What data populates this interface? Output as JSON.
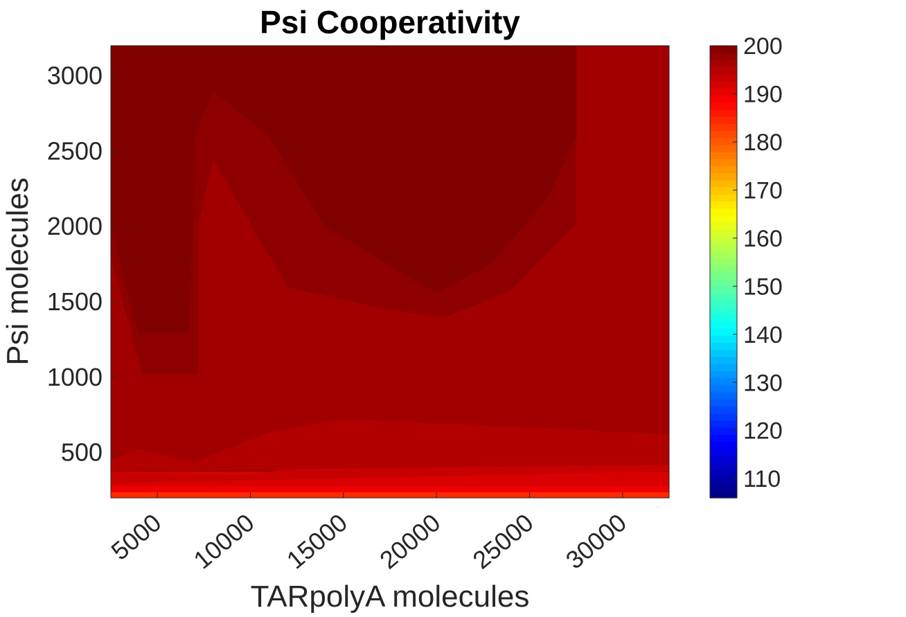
{
  "chart_data": {
    "type": "contour",
    "title": "Psi Cooperativity",
    "xlabel": "TARpolyA molecules",
    "ylabel": "Psi molecules",
    "xlim": [
      2500,
      32500
    ],
    "ylim": [
      200,
      3200
    ],
    "xticks": [
      5000,
      10000,
      15000,
      20000,
      25000,
      30000
    ],
    "yticks": [
      500,
      1000,
      1500,
      2000,
      2500,
      3000
    ],
    "colorbar": {
      "colormap": "jet",
      "clim": [
        106,
        200
      ],
      "ticks": [
        110,
        120,
        130,
        140,
        150,
        160,
        170,
        180,
        190,
        200
      ]
    },
    "contour_regions": [
      {
        "level": 188,
        "color": "#ff2a00",
        "polygon": [
          [
            2500,
            200
          ],
          [
            32500,
            200
          ],
          [
            32500,
            290
          ],
          [
            2500,
            290
          ]
        ]
      },
      {
        "level": 191,
        "color": "#ee0000",
        "polygon": [
          [
            2500,
            240
          ],
          [
            32500,
            240
          ],
          [
            32500,
            330
          ],
          [
            2500,
            330
          ]
        ]
      },
      {
        "level": 193,
        "color": "#d80000",
        "polygon": [
          [
            2500,
            280
          ],
          [
            32500,
            280
          ],
          [
            32500,
            370
          ],
          [
            2500,
            370
          ]
        ]
      },
      {
        "level": 194,
        "color": "#c70000",
        "polygon": [
          [
            2500,
            370
          ],
          [
            2500,
            300
          ],
          [
            14000,
            330
          ],
          [
            32500,
            380
          ],
          [
            32500,
            470
          ],
          [
            14000,
            440
          ],
          [
            10000,
            350
          ],
          [
            4000,
            360
          ]
        ]
      },
      {
        "level": 196,
        "color": "#b20000",
        "polygon": [
          [
            2500,
            380
          ],
          [
            32500,
            420
          ],
          [
            32500,
            620
          ],
          [
            15000,
            720
          ],
          [
            11000,
            630
          ],
          [
            7000,
            430
          ],
          [
            4000,
            520
          ],
          [
            2500,
            450
          ]
        ]
      },
      {
        "level": 197,
        "color": "#a20000",
        "polygon": [
          [
            2500,
            800
          ],
          [
            4000,
            700
          ],
          [
            7000,
            610
          ],
          [
            8000,
            620
          ],
          [
            10500,
            800
          ],
          [
            12000,
            800
          ],
          [
            12000,
            1230
          ],
          [
            15000,
            1100
          ],
          [
            20000,
            1020
          ],
          [
            25000,
            940
          ],
          [
            32500,
            820
          ],
          [
            32500,
            3200
          ],
          [
            27500,
            3200
          ],
          [
            27500,
            2020
          ],
          [
            24000,
            1580
          ],
          [
            20500,
            1400
          ],
          [
            17000,
            1460
          ],
          [
            12000,
            1600
          ],
          [
            8000,
            2450
          ],
          [
            7200,
            2020
          ],
          [
            7200,
            1020
          ],
          [
            4200,
            1020
          ],
          [
            2500,
            1800
          ]
        ]
      },
      {
        "level": 198,
        "color": "#8e0000",
        "polygon": [
          [
            2500,
            3200
          ],
          [
            2500,
            1800
          ],
          [
            4200,
            1020
          ],
          [
            7200,
            1020
          ],
          [
            7200,
            2020
          ],
          [
            8000,
            2450
          ],
          [
            12000,
            1600
          ],
          [
            17000,
            1460
          ],
          [
            20500,
            1400
          ],
          [
            24000,
            1580
          ],
          [
            27500,
            2020
          ],
          [
            27500,
            3200
          ]
        ]
      },
      {
        "level": 199,
        "color": "#800000",
        "polygon": [
          [
            2500,
            3200
          ],
          [
            2500,
            2000
          ],
          [
            4000,
            1300
          ],
          [
            6700,
            1300
          ],
          [
            7000,
            2600
          ],
          [
            8000,
            2900
          ],
          [
            11000,
            2600
          ],
          [
            14000,
            2000
          ],
          [
            20000,
            1560
          ],
          [
            23000,
            1760
          ],
          [
            26000,
            2200
          ],
          [
            27500,
            2600
          ],
          [
            27500,
            3200
          ]
        ]
      }
    ]
  }
}
